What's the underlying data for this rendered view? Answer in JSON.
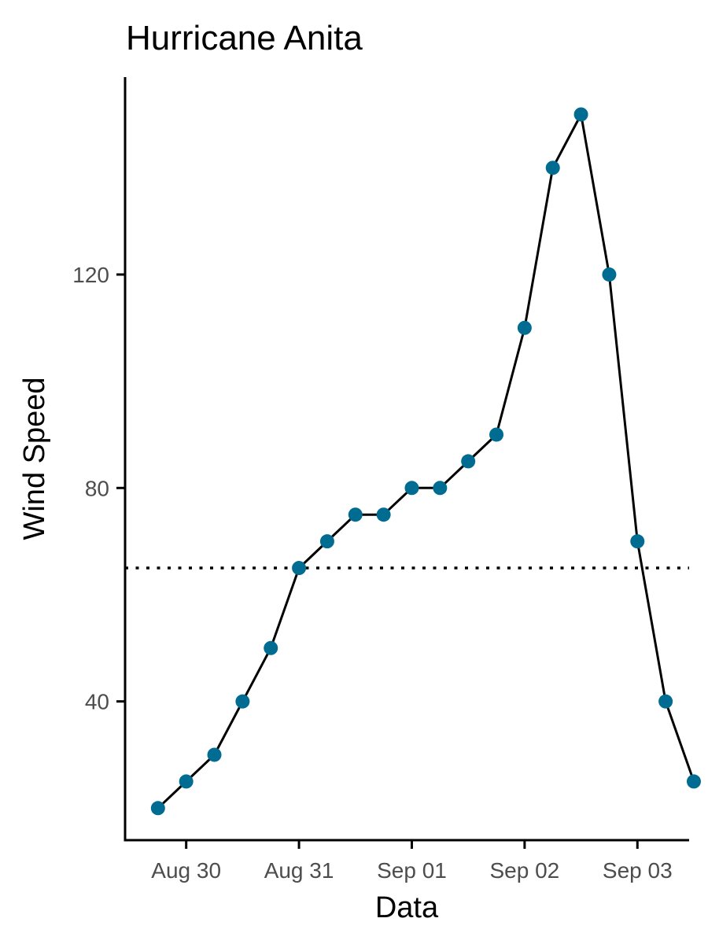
{
  "chart_data": {
    "type": "line",
    "title": "Hurricane Anita",
    "xlabel": "Data",
    "ylabel": "Wind Speed",
    "x_tick_labels": [
      "Aug 30",
      "Aug 31",
      "Sep 01",
      "Sep 02",
      "Sep 03"
    ],
    "y_ticks": [
      40,
      80,
      120
    ],
    "xlim": [
      "2024-08-29 11:00",
      "2024-09-03 11:00"
    ],
    "ylim": [
      14,
      157
    ],
    "grid": false,
    "legend": "none",
    "reference_line": {
      "axis": "y",
      "value": 65,
      "style": "dotted"
    },
    "colors": {
      "points": "#006C91",
      "line": "#000000",
      "reference": "#000000"
    },
    "series": [
      {
        "x": [
          "2024-08-29 18:00",
          "2024-08-30 00:00",
          "2024-08-30 06:00",
          "2024-08-30 12:00",
          "2024-08-30 18:00",
          "2024-08-31 00:00",
          "2024-08-31 06:00",
          "2024-08-31 12:00",
          "2024-08-31 18:00",
          "2024-09-01 00:00",
          "2024-09-01 06:00",
          "2024-09-01 12:00",
          "2024-09-01 18:00",
          "2024-09-02 00:00",
          "2024-09-02 06:00",
          "2024-09-02 12:00",
          "2024-09-02 18:00",
          "2024-09-03 00:00",
          "2024-09-03 06:00",
          "2024-09-03 12:00"
        ],
        "values": [
          20,
          25,
          30,
          40,
          50,
          65,
          70,
          75,
          75,
          80,
          80,
          85,
          90,
          110,
          140,
          150,
          120,
          70,
          40,
          25
        ]
      }
    ]
  }
}
